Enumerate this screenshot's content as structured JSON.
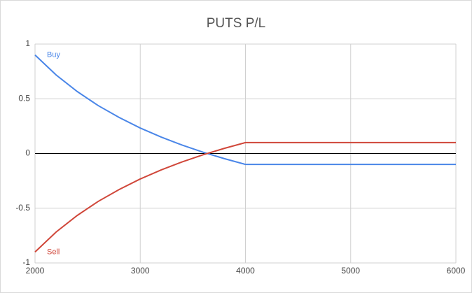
{
  "chart_data": {
    "type": "line",
    "title": "PUTS P/L",
    "x": [
      2000,
      2200,
      2400,
      2600,
      2800,
      3000,
      3200,
      3400,
      3600,
      3800,
      4000,
      6000
    ],
    "series": [
      {
        "name": "Buy",
        "color": "#4a86e8",
        "values": [
          0.9,
          0.718,
          0.567,
          0.438,
          0.329,
          0.233,
          0.15,
          0.076,
          0.011,
          -0.047,
          -0.1,
          -0.1
        ]
      },
      {
        "name": "Sell",
        "color": "#d0473a",
        "values": [
          -0.9,
          -0.718,
          -0.567,
          -0.438,
          -0.329,
          -0.233,
          -0.15,
          -0.076,
          -0.011,
          0.047,
          0.1,
          0.1
        ]
      }
    ],
    "xlim": [
      2000,
      6000
    ],
    "xticks": [
      2000,
      3000,
      4000,
      5000,
      6000
    ],
    "ylim": [
      -1,
      1
    ],
    "yticks": [
      -1,
      -0.5,
      0,
      0.5,
      1
    ],
    "grid": true,
    "zero_line": true
  }
}
